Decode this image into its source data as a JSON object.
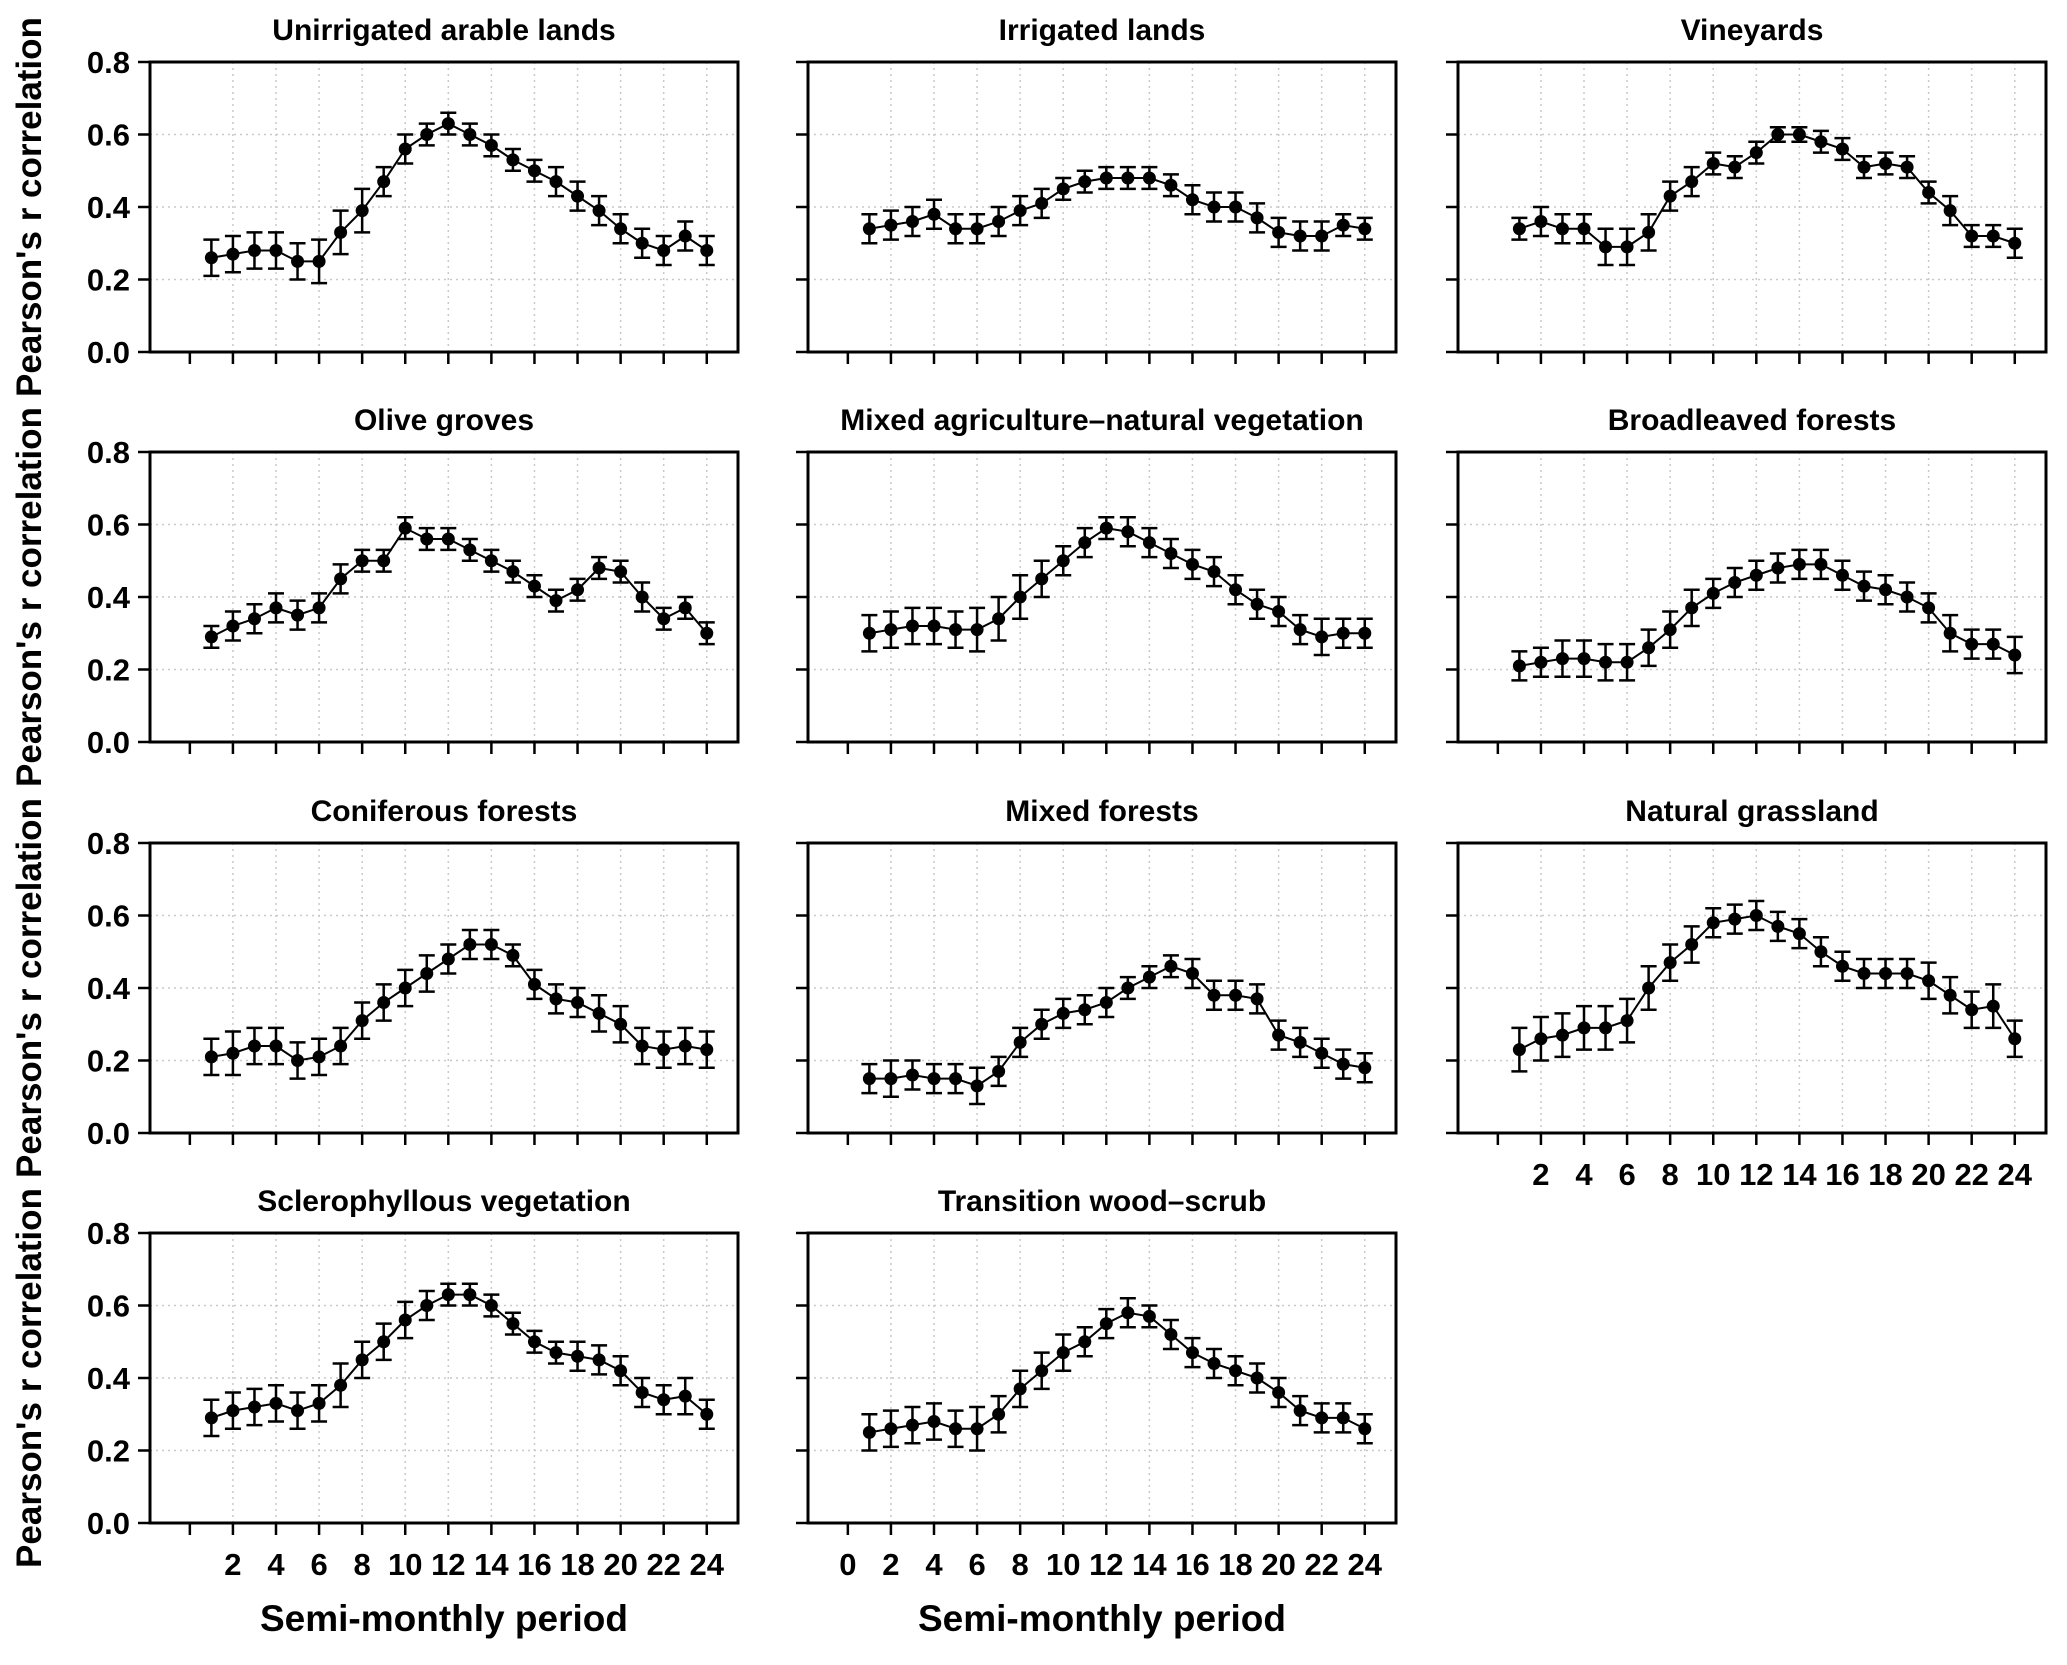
{
  "figure": {
    "background": "#ffffff",
    "line_color": "#000000",
    "marker_color": "#000000",
    "grid_color": "#c9c9c9",
    "text_color": "#000000"
  },
  "chart_data": {
    "type": "line",
    "x_label": "Semi-monthly period",
    "y_label": "Pearson's r correlation",
    "x": [
      1,
      2,
      3,
      4,
      5,
      6,
      7,
      8,
      9,
      10,
      11,
      12,
      13,
      14,
      15,
      16,
      17,
      18,
      19,
      20,
      21,
      22,
      23,
      24
    ],
    "ylim": [
      0.0,
      0.8
    ],
    "y_ticks": [
      0.0,
      0.2,
      0.4,
      0.6,
      0.8
    ],
    "grid": "dotted",
    "legend": "none",
    "marker": "filled-circle",
    "error_bars": true,
    "charts": [
      {
        "title": "Unirrigated arable lands",
        "row": 0,
        "col": 0,
        "x_tick_labels": [],
        "show_x_axis_title": false,
        "values": [
          0.26,
          0.27,
          0.28,
          0.28,
          0.25,
          0.25,
          0.33,
          0.39,
          0.47,
          0.56,
          0.6,
          0.63,
          0.6,
          0.57,
          0.53,
          0.5,
          0.47,
          0.43,
          0.39,
          0.34,
          0.3,
          0.28,
          0.32,
          0.28
        ],
        "err": [
          0.05,
          0.05,
          0.05,
          0.05,
          0.05,
          0.06,
          0.06,
          0.06,
          0.04,
          0.04,
          0.03,
          0.03,
          0.03,
          0.03,
          0.03,
          0.03,
          0.04,
          0.04,
          0.04,
          0.04,
          0.04,
          0.04,
          0.04,
          0.04
        ]
      },
      {
        "title": "Irrigated lands",
        "row": 0,
        "col": 1,
        "x_tick_labels": [],
        "show_x_axis_title": false,
        "values": [
          0.34,
          0.35,
          0.36,
          0.38,
          0.34,
          0.34,
          0.36,
          0.39,
          0.41,
          0.45,
          0.47,
          0.48,
          0.48,
          0.48,
          0.46,
          0.42,
          0.4,
          0.4,
          0.37,
          0.33,
          0.32,
          0.32,
          0.35,
          0.34
        ],
        "err": [
          0.04,
          0.04,
          0.04,
          0.04,
          0.04,
          0.04,
          0.04,
          0.04,
          0.04,
          0.03,
          0.03,
          0.03,
          0.03,
          0.03,
          0.03,
          0.04,
          0.04,
          0.04,
          0.04,
          0.04,
          0.04,
          0.04,
          0.03,
          0.03
        ]
      },
      {
        "title": "Vineyards",
        "row": 0,
        "col": 2,
        "x_tick_labels": [],
        "show_x_axis_title": false,
        "values": [
          0.34,
          0.36,
          0.34,
          0.34,
          0.29,
          0.29,
          0.33,
          0.43,
          0.47,
          0.52,
          0.51,
          0.55,
          0.6,
          0.6,
          0.58,
          0.56,
          0.51,
          0.52,
          0.51,
          0.44,
          0.39,
          0.32,
          0.32,
          0.3
        ],
        "err": [
          0.03,
          0.04,
          0.04,
          0.04,
          0.05,
          0.05,
          0.05,
          0.04,
          0.04,
          0.03,
          0.03,
          0.03,
          0.02,
          0.02,
          0.03,
          0.03,
          0.03,
          0.03,
          0.03,
          0.03,
          0.04,
          0.03,
          0.03,
          0.04
        ]
      },
      {
        "title": "Olive groves",
        "row": 1,
        "col": 0,
        "x_tick_labels": [],
        "show_x_axis_title": false,
        "values": [
          0.29,
          0.32,
          0.34,
          0.37,
          0.35,
          0.37,
          0.45,
          0.5,
          0.5,
          0.59,
          0.56,
          0.56,
          0.53,
          0.5,
          0.47,
          0.43,
          0.39,
          0.42,
          0.48,
          0.47,
          0.4,
          0.34,
          0.37,
          0.3
        ],
        "err": [
          0.03,
          0.04,
          0.04,
          0.04,
          0.04,
          0.04,
          0.04,
          0.03,
          0.03,
          0.03,
          0.03,
          0.03,
          0.03,
          0.03,
          0.03,
          0.03,
          0.03,
          0.03,
          0.03,
          0.03,
          0.04,
          0.03,
          0.03,
          0.03
        ]
      },
      {
        "title": "Mixed agriculture–natural vegetation",
        "row": 1,
        "col": 1,
        "x_tick_labels": [],
        "show_x_axis_title": false,
        "values": [
          0.3,
          0.31,
          0.32,
          0.32,
          0.31,
          0.31,
          0.34,
          0.4,
          0.45,
          0.5,
          0.55,
          0.59,
          0.58,
          0.55,
          0.52,
          0.49,
          0.47,
          0.42,
          0.38,
          0.36,
          0.31,
          0.29,
          0.3,
          0.3
        ],
        "err": [
          0.05,
          0.05,
          0.05,
          0.05,
          0.05,
          0.06,
          0.06,
          0.06,
          0.05,
          0.04,
          0.04,
          0.03,
          0.04,
          0.04,
          0.04,
          0.04,
          0.04,
          0.04,
          0.04,
          0.04,
          0.04,
          0.05,
          0.04,
          0.04
        ]
      },
      {
        "title": "Broadleaved forests",
        "row": 1,
        "col": 2,
        "x_tick_labels": [],
        "show_x_axis_title": false,
        "values": [
          0.21,
          0.22,
          0.23,
          0.23,
          0.22,
          0.22,
          0.26,
          0.31,
          0.37,
          0.41,
          0.44,
          0.46,
          0.48,
          0.49,
          0.49,
          0.46,
          0.43,
          0.42,
          0.4,
          0.37,
          0.3,
          0.27,
          0.27,
          0.24
        ],
        "err": [
          0.04,
          0.04,
          0.05,
          0.05,
          0.05,
          0.05,
          0.05,
          0.05,
          0.05,
          0.04,
          0.04,
          0.04,
          0.04,
          0.04,
          0.04,
          0.04,
          0.04,
          0.04,
          0.04,
          0.04,
          0.05,
          0.04,
          0.04,
          0.05
        ]
      },
      {
        "title": "Coniferous forests",
        "row": 2,
        "col": 0,
        "x_tick_labels": [],
        "show_x_axis_title": false,
        "values": [
          0.21,
          0.22,
          0.24,
          0.24,
          0.2,
          0.21,
          0.24,
          0.31,
          0.36,
          0.4,
          0.44,
          0.48,
          0.52,
          0.52,
          0.49,
          0.41,
          0.37,
          0.36,
          0.33,
          0.3,
          0.24,
          0.23,
          0.24,
          0.23
        ],
        "err": [
          0.05,
          0.06,
          0.05,
          0.05,
          0.05,
          0.05,
          0.05,
          0.05,
          0.05,
          0.05,
          0.05,
          0.04,
          0.04,
          0.04,
          0.03,
          0.04,
          0.04,
          0.04,
          0.05,
          0.05,
          0.05,
          0.05,
          0.05,
          0.05
        ]
      },
      {
        "title": "Mixed forests",
        "row": 2,
        "col": 1,
        "x_tick_labels": [],
        "show_x_axis_title": false,
        "values": [
          0.15,
          0.15,
          0.16,
          0.15,
          0.15,
          0.13,
          0.17,
          0.25,
          0.3,
          0.33,
          0.34,
          0.36,
          0.4,
          0.43,
          0.46,
          0.44,
          0.38,
          0.38,
          0.37,
          0.27,
          0.25,
          0.22,
          0.19,
          0.18
        ],
        "err": [
          0.04,
          0.05,
          0.04,
          0.04,
          0.04,
          0.05,
          0.04,
          0.04,
          0.04,
          0.04,
          0.04,
          0.04,
          0.03,
          0.03,
          0.03,
          0.04,
          0.04,
          0.04,
          0.04,
          0.04,
          0.04,
          0.04,
          0.04,
          0.04
        ]
      },
      {
        "title": "Natural grassland",
        "row": 2,
        "col": 2,
        "x_tick_labels": [
          2,
          4,
          6,
          8,
          10,
          12,
          14,
          16,
          18,
          20,
          22,
          24
        ],
        "show_x_axis_title": false,
        "values": [
          0.23,
          0.26,
          0.27,
          0.29,
          0.29,
          0.31,
          0.4,
          0.47,
          0.52,
          0.58,
          0.59,
          0.6,
          0.57,
          0.55,
          0.5,
          0.46,
          0.44,
          0.44,
          0.44,
          0.42,
          0.38,
          0.34,
          0.35,
          0.26
        ],
        "err": [
          0.06,
          0.06,
          0.06,
          0.06,
          0.06,
          0.06,
          0.06,
          0.05,
          0.05,
          0.04,
          0.04,
          0.04,
          0.04,
          0.04,
          0.04,
          0.04,
          0.04,
          0.04,
          0.04,
          0.05,
          0.05,
          0.05,
          0.06,
          0.05
        ]
      },
      {
        "title": "Sclerophyllous vegetation",
        "row": 3,
        "col": 0,
        "x_tick_labels": [
          2,
          4,
          6,
          8,
          10,
          12,
          14,
          16,
          18,
          20,
          22,
          24
        ],
        "show_x_axis_title": true,
        "values": [
          0.29,
          0.31,
          0.32,
          0.33,
          0.31,
          0.33,
          0.38,
          0.45,
          0.5,
          0.56,
          0.6,
          0.63,
          0.63,
          0.6,
          0.55,
          0.5,
          0.47,
          0.46,
          0.45,
          0.42,
          0.36,
          0.34,
          0.35,
          0.3
        ],
        "err": [
          0.05,
          0.05,
          0.05,
          0.05,
          0.05,
          0.05,
          0.06,
          0.05,
          0.05,
          0.05,
          0.04,
          0.03,
          0.03,
          0.03,
          0.03,
          0.03,
          0.03,
          0.04,
          0.04,
          0.04,
          0.04,
          0.04,
          0.05,
          0.04
        ]
      },
      {
        "title": "Transition wood–scrub",
        "row": 3,
        "col": 1,
        "x_tick_labels": [
          0,
          2,
          4,
          6,
          8,
          10,
          12,
          14,
          16,
          18,
          20,
          22,
          24
        ],
        "show_x_axis_title": true,
        "values": [
          0.25,
          0.26,
          0.27,
          0.28,
          0.26,
          0.26,
          0.3,
          0.37,
          0.42,
          0.47,
          0.5,
          0.55,
          0.58,
          0.57,
          0.52,
          0.47,
          0.44,
          0.42,
          0.4,
          0.36,
          0.31,
          0.29,
          0.29,
          0.26
        ],
        "err": [
          0.05,
          0.05,
          0.05,
          0.05,
          0.05,
          0.06,
          0.05,
          0.05,
          0.05,
          0.05,
          0.04,
          0.04,
          0.04,
          0.03,
          0.04,
          0.04,
          0.04,
          0.04,
          0.04,
          0.04,
          0.04,
          0.04,
          0.04,
          0.04
        ]
      }
    ]
  }
}
